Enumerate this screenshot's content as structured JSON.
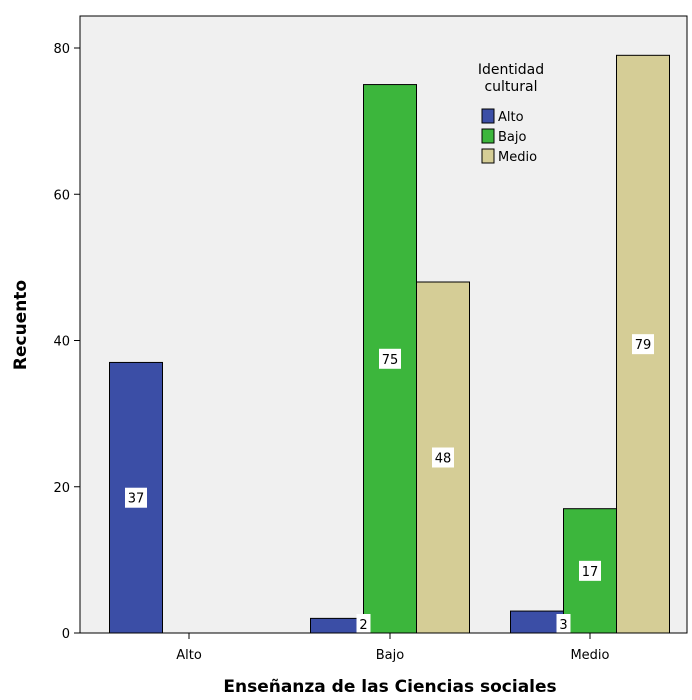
{
  "chart_data": {
    "type": "bar",
    "categories": [
      "Alto",
      "Bajo",
      "Medio"
    ],
    "series": [
      {
        "name": "Alto",
        "color": "#3b4ea6",
        "values": [
          37,
          2,
          3
        ]
      },
      {
        "name": "Bajo",
        "color": "#3cb63c",
        "values": [
          0,
          75,
          17
        ]
      },
      {
        "name": "Medio",
        "color": "#d5cd96",
        "values": [
          0,
          48,
          79
        ]
      }
    ],
    "data_labels": [
      [
        "37",
        "",
        ""
      ],
      [
        "2",
        "75",
        "48"
      ],
      [
        "3",
        "17",
        "79"
      ]
    ],
    "xlabel": "Enseñanza de las Ciencias sociales",
    "ylabel": "Recuento",
    "ylim": [
      0,
      80
    ],
    "yticks": [
      0,
      20,
      40,
      60,
      80
    ],
    "legend": {
      "title_line1": "Identidad",
      "title_line2": "cultural",
      "placement": "top-right"
    },
    "plot_background": "#f0f0f0",
    "grid": false
  }
}
